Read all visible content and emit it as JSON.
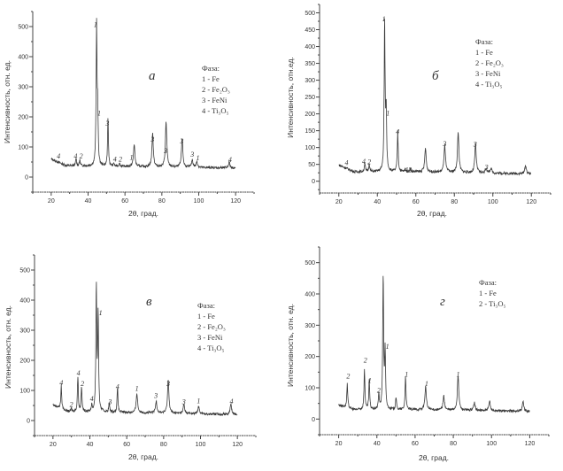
{
  "chart_data": [
    {
      "type": "line",
      "panel": "а",
      "xlabel": "2θ, град.",
      "ylabel": "Интенсивность, отн. ед.",
      "xlim": [
        10,
        130
      ],
      "ylim": [
        -50,
        550
      ],
      "xticks": [
        20,
        40,
        60,
        80,
        100,
        120
      ],
      "yticks": [
        0,
        100,
        200,
        300,
        400,
        500
      ],
      "legend": [
        "Фаза:",
        "1 - Fe",
        "2 - Fe₂O₃",
        "3 - FeNi",
        "4 - Ti₃O₅"
      ],
      "baseline": [
        [
          20,
          60
        ],
        [
          28,
          38
        ],
        [
          60,
          35
        ],
        [
          120,
          30
        ]
      ],
      "peaks": [
        [
          33.5,
          25
        ],
        [
          35.5,
          20
        ],
        [
          44.6,
          460
        ],
        [
          45.2,
          170
        ],
        [
          50.8,
          160
        ],
        [
          54,
          10
        ],
        [
          57,
          12
        ],
        [
          65,
          75
        ],
        [
          75,
          110
        ],
        [
          82.3,
          150
        ],
        [
          91,
          95
        ],
        [
          96.5,
          25
        ],
        [
          99,
          20
        ],
        [
          116.5,
          20
        ]
      ],
      "peak_labels": [
        [
          24,
          62,
          "4"
        ],
        [
          33.2,
          62,
          "4"
        ],
        [
          36.2,
          62,
          "2"
        ],
        [
          44,
          498,
          "1"
        ],
        [
          46,
          205,
          "1"
        ],
        [
          50.5,
          170,
          "3"
        ],
        [
          54.5,
          52,
          "4"
        ],
        [
          57.5,
          52,
          "2"
        ],
        [
          63.5,
          58,
          "1"
        ],
        [
          75,
          118,
          "3"
        ],
        [
          82,
          80,
          "3"
        ],
        [
          90.8,
          112,
          "3"
        ],
        [
          96.5,
          68,
          "3"
        ],
        [
          99.5,
          56,
          "1"
        ],
        [
          117,
          50,
          "4"
        ]
      ]
    },
    {
      "type": "line",
      "panel": "б",
      "xlabel": "2θ, град.",
      "ylabel": "Интенсивность, отн.ед.",
      "xlim": [
        10,
        130
      ],
      "ylim": [
        -35,
        525
      ],
      "xticks": [
        20,
        40,
        60,
        80,
        100,
        120
      ],
      "yticks": [
        0,
        50,
        100,
        150,
        200,
        250,
        300,
        350,
        400,
        450,
        500
      ],
      "legend": [
        "Фаза:",
        "1 - Fe",
        "2 - Fe₂O₃",
        "3 - FeNi",
        "4 - Ti₃O₅"
      ],
      "baseline": [
        [
          20,
          48
        ],
        [
          28,
          28
        ],
        [
          60,
          28
        ],
        [
          120,
          22
        ]
      ],
      "peaks": [
        [
          33.5,
          28
        ],
        [
          35.8,
          25
        ],
        [
          43.8,
          450
        ],
        [
          44.6,
          170
        ],
        [
          50.6,
          120
        ],
        [
          54.5,
          8
        ],
        [
          57,
          10
        ],
        [
          65,
          70
        ],
        [
          75,
          80
        ],
        [
          82,
          120
        ],
        [
          91,
          85
        ],
        [
          96.5,
          15
        ],
        [
          99,
          15
        ],
        [
          117,
          25
        ]
      ],
      "peak_labels": [
        [
          24,
          48,
          "4"
        ],
        [
          33,
          52,
          "4"
        ],
        [
          35.8,
          50,
          "2"
        ],
        [
          43.4,
          475,
          "1"
        ],
        [
          45.5,
          195,
          "1"
        ],
        [
          50.5,
          140,
          "4"
        ],
        [
          55,
          27,
          "4"
        ],
        [
          57,
          27,
          "2"
        ],
        [
          75,
          105,
          "3"
        ],
        [
          90.8,
          103,
          "3"
        ],
        [
          96.7,
          35,
          "3"
        ]
      ]
    },
    {
      "type": "line",
      "panel": "в",
      "xlabel": "2θ, град.",
      "ylabel": "Интенсивность, отн. ед.",
      "xlim": [
        10,
        130
      ],
      "ylim": [
        -50,
        550
      ],
      "xticks": [
        20,
        40,
        60,
        80,
        100,
        120
      ],
      "yticks": [
        0,
        100,
        200,
        300,
        400,
        500
      ],
      "legend": [
        "Фаза:",
        "1 - Fe",
        "2 - Fe₂O₃",
        "3 - FeNi",
        "4 - Ti₃O₅"
      ],
      "baseline": [
        [
          20,
          52
        ],
        [
          28,
          30
        ],
        [
          60,
          27
        ],
        [
          120,
          20
        ]
      ],
      "peaks": [
        [
          24.5,
          75
        ],
        [
          30,
          10
        ],
        [
          33.5,
          115
        ],
        [
          35.5,
          85
        ],
        [
          41,
          20
        ],
        [
          43.5,
          420
        ],
        [
          44.5,
          320
        ],
        [
          50.5,
          30
        ],
        [
          55,
          80
        ],
        [
          65.5,
          65
        ],
        [
          76,
          40
        ],
        [
          82.5,
          110
        ],
        [
          91,
          30
        ],
        [
          99,
          25
        ],
        [
          116.5,
          35
        ]
      ],
      "peak_labels": [
        [
          24.5,
          118,
          "4"
        ],
        [
          30,
          45,
          "2"
        ],
        [
          33.8,
          150,
          "4"
        ],
        [
          36,
          115,
          "2"
        ],
        [
          41,
          65,
          "4"
        ],
        [
          45.8,
          350,
          "1"
        ],
        [
          51,
          55,
          "3"
        ],
        [
          55,
          105,
          "4"
        ],
        [
          65.5,
          98,
          "1"
        ],
        [
          75.8,
          75,
          "3"
        ],
        [
          82.5,
          115,
          "3"
        ],
        [
          91,
          55,
          "3"
        ],
        [
          99,
          57,
          "1"
        ],
        [
          116.8,
          56,
          "4"
        ]
      ]
    },
    {
      "type": "line",
      "panel": "г",
      "xlabel": "2θ, град.",
      "ylabel": "Интенсивность, отн. ед.",
      "xlim": [
        10,
        130
      ],
      "ylim": [
        -50,
        550
      ],
      "xticks": [
        20,
        40,
        60,
        80,
        100,
        120
      ],
      "yticks": [
        0,
        100,
        200,
        300,
        400,
        500
      ],
      "legend": [
        "Фаза:",
        "1 - Fe",
        "2 - Ti₃O₅"
      ],
      "baseline": [
        [
          20,
          45
        ],
        [
          28,
          30
        ],
        [
          60,
          30
        ],
        [
          120,
          25
        ]
      ],
      "peaks": [
        [
          24.5,
          75
        ],
        [
          33.5,
          130
        ],
        [
          36,
          95
        ],
        [
          41,
          50
        ],
        [
          43.3,
          430
        ],
        [
          44.3,
          180
        ],
        [
          50,
          40
        ],
        [
          55,
          110
        ],
        [
          65.5,
          75
        ],
        [
          75,
          45
        ],
        [
          82.5,
          110
        ],
        [
          91,
          25
        ],
        [
          99,
          30
        ],
        [
          116.5,
          30
        ]
      ],
      "peak_labels": [
        [
          25,
          130,
          "2"
        ],
        [
          34,
          180,
          "2"
        ],
        [
          36.3,
          115,
          "1"
        ],
        [
          41,
          85,
          "2"
        ],
        [
          45.5,
          225,
          "1"
        ],
        [
          55.5,
          135,
          "1"
        ],
        [
          66,
          105,
          "1"
        ],
        [
          82.5,
          135,
          "1"
        ]
      ]
    }
  ]
}
